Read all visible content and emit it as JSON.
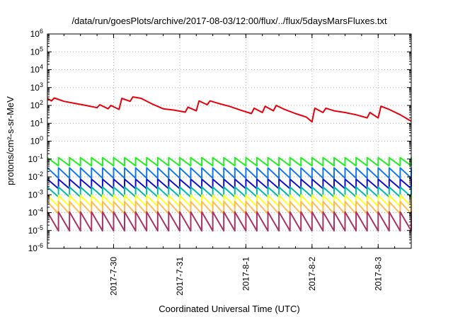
{
  "chart_data": {
    "type": "line",
    "title": "/data/run/goesPlots/archive/2017-08-03/12:00/flux/../flux/5daysMarsFluxes.txt",
    "xlabel": "Coordinated Universal Time (UTC)",
    "ylabel": "protons/cm²-s-sr-MeV",
    "yscale": "log",
    "ylim": [
      1e-06,
      1000000.0
    ],
    "yticks": [
      {
        "exp": -6,
        "label": "10-6"
      },
      {
        "exp": -5,
        "label": "10-5"
      },
      {
        "exp": -4,
        "label": "10-4"
      },
      {
        "exp": -3,
        "label": "10-3"
      },
      {
        "exp": -2,
        "label": "10-2"
      },
      {
        "exp": -1,
        "label": "10-1"
      },
      {
        "exp": 0,
        "label": "100"
      },
      {
        "exp": 1,
        "label": "101"
      },
      {
        "exp": 2,
        "label": "102"
      },
      {
        "exp": 3,
        "label": "103"
      },
      {
        "exp": 4,
        "label": "104"
      },
      {
        "exp": 5,
        "label": "105"
      },
      {
        "exp": 6,
        "label": "106"
      }
    ],
    "xlim": [
      "2017-07-29T00:00",
      "2017-08-03T12:00"
    ],
    "xticks": [
      "2017-7-30",
      "2017-7-31",
      "2017-8-1",
      "2017-8-2",
      "2017-8-3"
    ],
    "grid": true,
    "series": [
      {
        "color": "#e8000b",
        "points": [
          [
            "2017-07-29T00:00",
            250
          ],
          [
            "2017-07-29T01:30",
            180
          ],
          [
            "2017-07-29T02:30",
            260
          ],
          [
            "2017-07-29T06:00",
            170
          ],
          [
            "2017-07-29T10:00",
            130
          ],
          [
            "2017-07-29T14:00",
            100
          ],
          [
            "2017-07-29T18:00",
            75
          ],
          [
            "2017-07-29T19:00",
            110
          ],
          [
            "2017-07-29T22:00",
            65
          ],
          [
            "2017-07-29T23:00",
            100
          ],
          [
            "2017-07-30T02:00",
            60
          ],
          [
            "2017-07-30T03:00",
            250
          ],
          [
            "2017-07-30T06:00",
            170
          ],
          [
            "2017-07-30T07:00",
            300
          ],
          [
            "2017-07-30T10:00",
            250
          ],
          [
            "2017-07-30T14:00",
            120
          ],
          [
            "2017-07-30T18:00",
            65
          ],
          [
            "2017-07-30T22:00",
            55
          ],
          [
            "2017-07-31T02:00",
            42
          ],
          [
            "2017-07-31T03:00",
            80
          ],
          [
            "2017-07-31T06:00",
            50
          ],
          [
            "2017-07-31T07:00",
            180
          ],
          [
            "2017-07-31T10:00",
            110
          ],
          [
            "2017-07-31T11:00",
            180
          ],
          [
            "2017-07-31T14:00",
            130
          ],
          [
            "2017-07-31T18:00",
            90
          ],
          [
            "2017-07-31T22:00",
            55
          ],
          [
            "2017-08-01T02:00",
            35
          ],
          [
            "2017-08-01T03:00",
            70
          ],
          [
            "2017-08-01T06:00",
            40
          ],
          [
            "2017-08-01T07:00",
            90
          ],
          [
            "2017-08-01T10:00",
            50
          ],
          [
            "2017-08-01T11:00",
            100
          ],
          [
            "2017-08-01T14:00",
            60
          ],
          [
            "2017-08-01T18:00",
            35
          ],
          [
            "2017-08-01T22:00",
            22
          ],
          [
            "2017-08-02T00:00",
            12
          ],
          [
            "2017-08-02T01:00",
            70
          ],
          [
            "2017-08-02T04:00",
            40
          ],
          [
            "2017-08-02T05:00",
            70
          ],
          [
            "2017-08-02T08:00",
            50
          ],
          [
            "2017-08-02T12:00",
            40
          ],
          [
            "2017-08-02T16:00",
            30
          ],
          [
            "2017-08-02T20:00",
            20
          ],
          [
            "2017-08-02T21:00",
            40
          ],
          [
            "2017-08-03T00:00",
            20
          ],
          [
            "2017-08-03T01:00",
            90
          ],
          [
            "2017-08-03T04:00",
            60
          ],
          [
            "2017-08-03T08:00",
            30
          ],
          [
            "2017-08-03T12:00",
            13
          ]
        ]
      }
    ],
    "periodic_series": [
      {
        "color": "#22ee22",
        "low": 0.042,
        "high": 0.12
      },
      {
        "color": "#1177ee",
        "low": 0.0085,
        "high": 0.032
      },
      {
        "color": "#1111cc",
        "low": 0.0022,
        "high": 0.0075
      },
      {
        "color": "#00bbaa",
        "low": 0.00075,
        "high": 0.0027
      },
      {
        "color": "#ffff22",
        "low": 0.00022,
        "high": 0.00095
      },
      {
        "color": "#ffbb55",
        "low": 8.5e-05,
        "high": 0.00042
      },
      {
        "color": "#aa3366",
        "low": 9.5e-06,
        "high": 0.00011
      }
    ],
    "period_hours": 4
  }
}
